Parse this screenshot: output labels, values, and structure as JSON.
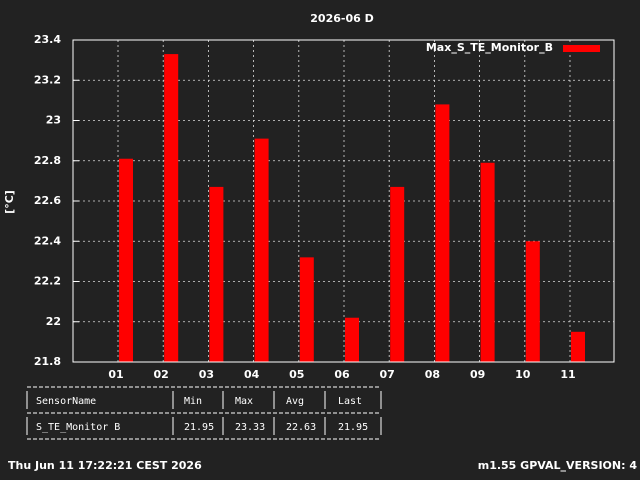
{
  "chart_data": {
    "type": "bar",
    "title": "2026-06 D",
    "ylabel": "[°C]",
    "categories": [
      "01",
      "02",
      "03",
      "04",
      "05",
      "06",
      "07",
      "08",
      "09",
      "10",
      "11"
    ],
    "series": [
      {
        "name": "Max_S_TE_Monitor_B",
        "color": "#ff0000",
        "values": [
          22.81,
          23.33,
          22.67,
          22.91,
          22.32,
          22.02,
          22.67,
          23.08,
          22.79,
          22.4,
          21.95
        ]
      }
    ],
    "ylim": [
      21.8,
      23.4
    ],
    "yticks": [
      21.8,
      22,
      22.2,
      22.4,
      22.6,
      22.8,
      23,
      23.2,
      23.4
    ],
    "grid": true,
    "legend": "top-right"
  },
  "table": {
    "headers": [
      "SensorName",
      "Min",
      "Max",
      "Avg",
      "Last"
    ],
    "rows": [
      [
        "S_TE_Monitor B",
        "21.95",
        "23.33",
        "22.63",
        "21.95"
      ]
    ]
  },
  "footer": {
    "left": "Thu Jun 11 17:22:21 CEST 2026",
    "right": "m1.55 GPVAL_VERSION: 4"
  }
}
